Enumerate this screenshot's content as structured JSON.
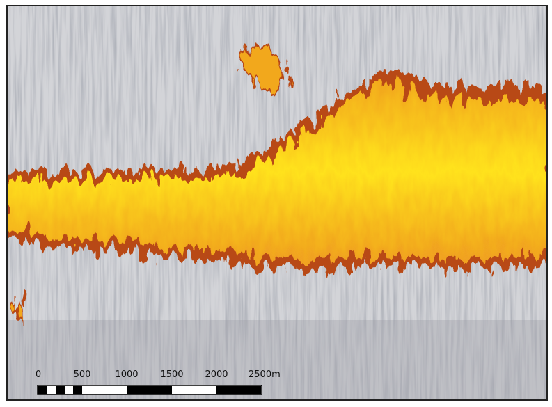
{
  "scale_bar": {
    "labels": [
      "0",
      "500",
      "1000",
      "1500",
      "2000",
      "2500m"
    ]
  }
}
